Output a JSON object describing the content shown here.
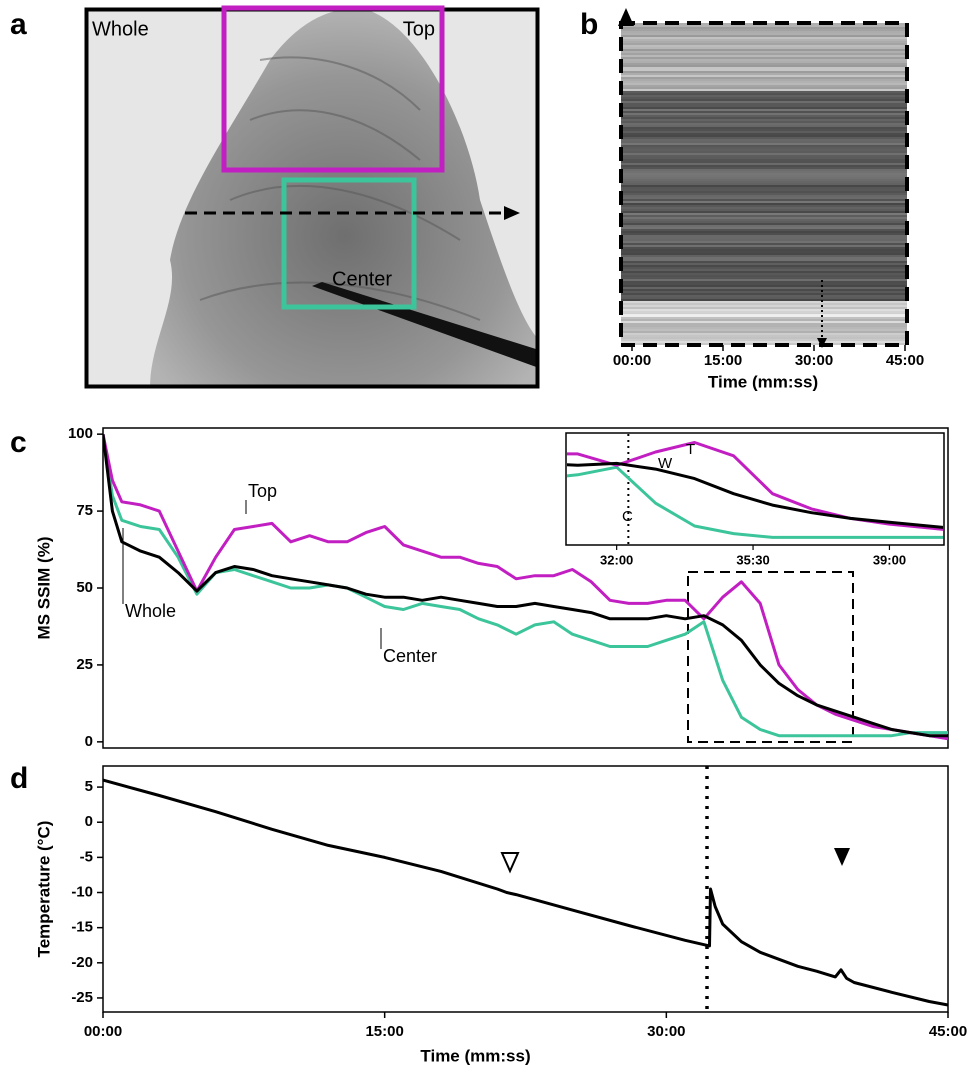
{
  "chart_data": [
    {
      "panel": "a",
      "type": "image",
      "labels": [
        "Whole",
        "Top",
        "Center"
      ]
    },
    {
      "panel": "b",
      "type": "kymograph",
      "xlabel": "Time (mm:ss)",
      "xlim": [
        0,
        45
      ],
      "xticks": [
        {
          "value": 0,
          "label": "00:00"
        },
        {
          "value": 15,
          "label": "15:00"
        },
        {
          "value": 30,
          "label": "30:00"
        },
        {
          "value": 45,
          "label": "45:00"
        }
      ]
    },
    {
      "panel": "c",
      "type": "line",
      "ylabel": "MS SSIM (%)",
      "xlim": [
        0,
        45
      ],
      "ylim": [
        -2,
        102
      ],
      "yticks": [
        0,
        25,
        50,
        75,
        100
      ],
      "x": [
        0,
        0.5,
        1,
        2,
        3,
        4,
        5,
        6,
        7,
        8,
        9,
        10,
        11,
        12,
        13,
        14,
        15,
        16,
        17,
        18,
        19,
        20,
        21,
        22,
        23,
        24,
        25,
        26,
        27,
        28,
        29,
        30,
        31,
        32,
        33,
        34,
        35,
        36,
        37,
        38,
        39,
        40,
        41,
        42,
        43,
        44,
        45
      ],
      "series": [
        {
          "name": "Whole",
          "color": "#000000",
          "values": [
            100,
            75,
            65,
            62,
            60,
            55,
            49,
            55,
            57,
            56,
            54,
            53,
            52,
            51,
            50,
            48,
            47,
            47,
            46,
            47,
            46,
            45,
            44,
            44,
            45,
            44,
            43,
            42,
            40,
            40,
            40,
            41,
            40,
            41,
            38,
            33,
            25,
            19,
            15,
            12,
            10,
            8,
            6,
            4,
            3,
            2,
            2
          ]
        },
        {
          "name": "Top",
          "color": "#c21fc2",
          "values": [
            100,
            85,
            78,
            77,
            75,
            62,
            49,
            60,
            69,
            70,
            71,
            65,
            67,
            65,
            65,
            68,
            70,
            64,
            62,
            60,
            60,
            58,
            57,
            53,
            54,
            54,
            56,
            52,
            46,
            45,
            45,
            46,
            46,
            40,
            47,
            52,
            45,
            25,
            17,
            12,
            9,
            7,
            5,
            4,
            3,
            2,
            1
          ]
        },
        {
          "name": "Center",
          "color": "#3cc49a",
          "values": [
            100,
            80,
            72,
            70,
            69,
            60,
            48,
            55,
            56,
            54,
            52,
            50,
            50,
            51,
            50,
            47,
            44,
            43,
            45,
            44,
            43,
            40,
            38,
            35,
            38,
            39,
            35,
            33,
            31,
            31,
            31,
            33,
            35,
            39,
            20,
            8,
            4,
            2,
            2,
            2,
            2,
            2,
            2,
            2,
            3,
            3,
            3
          ]
        }
      ],
      "inset": {
        "xlim": [
          30.7,
          40.4
        ],
        "ylim": [
          -2,
          57
        ],
        "xticks": [
          {
            "value": 32,
            "label": "32:00"
          },
          {
            "value": 35.5,
            "label": "35:30"
          },
          {
            "value": 39,
            "label": "39:00"
          }
        ],
        "labels": [
          "W",
          "T",
          "C"
        ]
      }
    },
    {
      "panel": "d",
      "type": "line",
      "ylabel": "Temperature (°C)",
      "xlabel": "Time (mm:ss)",
      "xlim": [
        0,
        45
      ],
      "ylim": [
        -27,
        8
      ],
      "yticks": [
        5,
        0,
        -5,
        -10,
        -15,
        -20,
        -25
      ],
      "xticks": [
        {
          "value": 0,
          "label": "00:00"
        },
        {
          "value": 15,
          "label": "15:00"
        },
        {
          "value": 30,
          "label": "30:00"
        },
        {
          "value": 45,
          "label": "45:00"
        }
      ],
      "x": [
        0,
        3,
        6,
        9,
        12,
        15,
        18,
        21,
        21.5,
        22,
        25,
        28,
        31,
        32.3,
        32.35,
        32.6,
        33,
        34,
        35,
        36,
        37,
        38,
        39,
        39.3,
        39.6,
        40,
        42,
        44,
        45
      ],
      "series": [
        {
          "color": "#000000",
          "values": [
            6,
            3.8,
            1.5,
            -1,
            -3.3,
            -5,
            -7,
            -9.5,
            -10,
            -10.3,
            -12.5,
            -14.7,
            -16.8,
            -17.6,
            -9.5,
            -12,
            -14.5,
            -17,
            -18.5,
            -19.5,
            -20.5,
            -21.2,
            -22,
            -21,
            -22.2,
            -22.8,
            -24.2,
            -25.5,
            -26
          ]
        }
      ]
    }
  ]
}
